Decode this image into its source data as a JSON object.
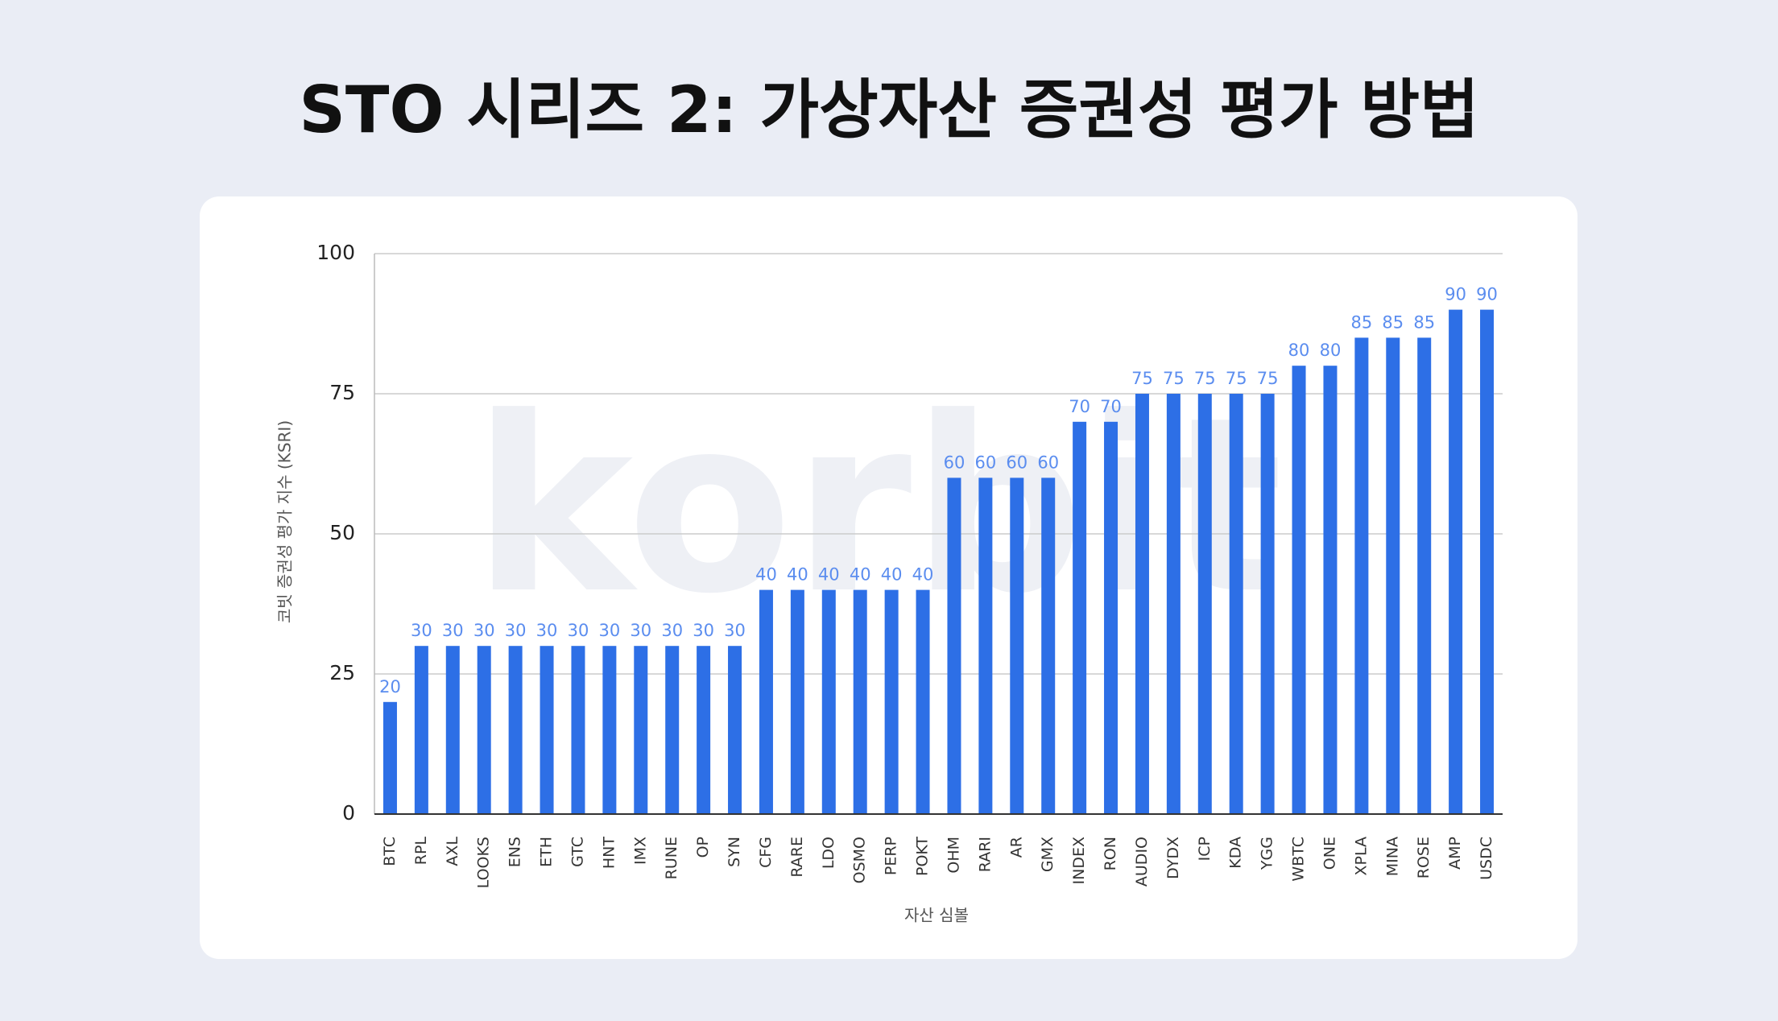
{
  "chart_data": {
    "type": "bar",
    "title": "STO 시리즈 2: 가상자산 증권성 평가 방법",
    "watermark": "korbit",
    "y_label": "코빗 증권성 평가 지수 (KSRI)",
    "x_label": "자산 심볼",
    "categories": [
      "BTC",
      "RPL",
      "AXL",
      "LOOKS",
      "ENS",
      "ETH",
      "GTC",
      "HNT",
      "IMX",
      "RUNE",
      "OP",
      "SYN",
      "CFG",
      "RARE",
      "LDO",
      "OSMO",
      "PERP",
      "POKT",
      "OHM",
      "RARI",
      "AR",
      "GMX",
      "INDEX",
      "RON",
      "AUDIO",
      "DYDX",
      "ICP",
      "KDA",
      "YGG",
      "WBTC",
      "ONE",
      "XPLA",
      "MINA",
      "ROSE",
      "AMP",
      "USDC"
    ],
    "values": [
      20,
      30,
      30,
      30,
      30,
      30,
      30,
      30,
      30,
      30,
      30,
      30,
      40,
      40,
      40,
      40,
      40,
      40,
      60,
      60,
      60,
      60,
      70,
      70,
      75,
      75,
      75,
      75,
      75,
      80,
      80,
      85,
      85,
      85,
      90,
      90
    ],
    "color": "#2d6fe6",
    "ylim": [
      0,
      100
    ],
    "yticks": [
      0,
      25,
      50,
      75,
      100
    ],
    "grid": true
  }
}
